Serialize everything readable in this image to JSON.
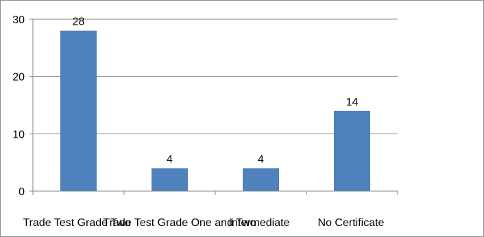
{
  "chart_data": {
    "type": "bar",
    "categories": [
      "Trade Test Grade Two",
      "Trade Test Grade One and Two",
      "Intermediate",
      "No Certificate"
    ],
    "values": [
      28,
      4,
      4,
      14
    ],
    "data_labels": [
      "28",
      "4",
      "4",
      "14"
    ],
    "y_ticks": [
      "0",
      "10",
      "20",
      "30"
    ],
    "ylim": [
      0,
      30
    ],
    "grid": true,
    "legend": false,
    "title": "",
    "xlabel": "",
    "ylabel": "",
    "colors": {
      "bar": "#4f81bd",
      "grid": "#868686",
      "axis": "#868686"
    }
  }
}
